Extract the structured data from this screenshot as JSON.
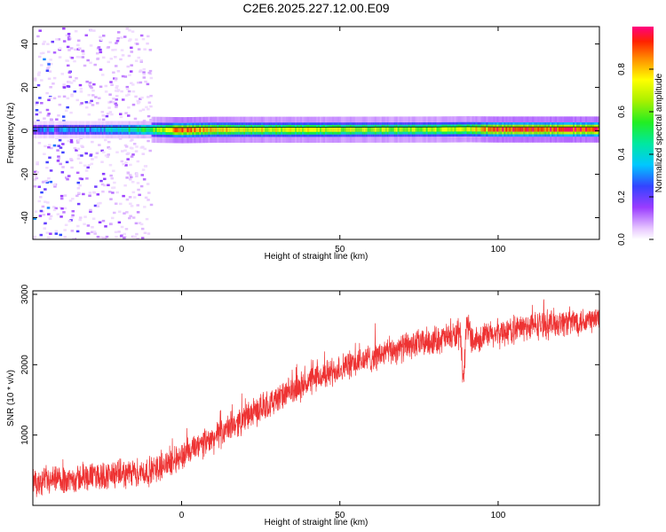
{
  "title": "C2E6.2025.227.12.00.E09",
  "chart_data": [
    {
      "type": "heatmap",
      "name": "spectrogram",
      "xlabel": "Height of straight line (km)",
      "ylabel": "Frequency (Hz)",
      "xlim": [
        -47,
        132
      ],
      "ylim": [
        -50,
        48
      ],
      "xticks": [
        0,
        50,
        100
      ],
      "yticks": [
        -40,
        -20,
        0,
        20,
        40
      ],
      "colorbar": {
        "label": "Normalized spectral amplitude",
        "range": [
          0,
          1
        ],
        "ticks": [
          0.0,
          0.2,
          0.4,
          0.6,
          0.8
        ],
        "tick_labels": [
          "0.0",
          "0.2",
          "0.4",
          "0.6",
          "0.8"
        ]
      },
      "center_line": {
        "x": [
          -47,
          -30,
          -10,
          0,
          10,
          40,
          80,
          90,
          100,
          132
        ],
        "freq": [
          0.5,
          0.5,
          0.5,
          0.3,
          0.5,
          0.5,
          0.6,
          0.7,
          0.6,
          0.6
        ],
        "amplitude": [
          0.25,
          0.3,
          0.55,
          0.9,
          0.75,
          0.7,
          0.65,
          0.7,
          0.9,
          0.95
        ]
      },
      "scatter_region": {
        "x": [
          -47,
          -10
        ],
        "freq": [
          -50,
          48
        ]
      }
    },
    {
      "type": "line",
      "name": "snr",
      "xlabel": "Height of straight line (km)",
      "ylabel": "SNR (10 * v/v)",
      "xlim": [
        -47,
        132
      ],
      "ylim": [
        0,
        3050
      ],
      "xticks": [
        0,
        50,
        100
      ],
      "yticks": [
        1000,
        2000,
        3000
      ],
      "color": "#ee3333",
      "trend": {
        "x": [
          -47,
          -30,
          -10,
          0,
          10,
          20,
          30,
          40,
          50,
          60,
          70,
          80,
          88,
          89,
          90,
          92,
          100,
          110,
          120,
          132
        ],
        "y": [
          300,
          400,
          480,
          700,
          950,
          1250,
          1500,
          1750,
          1950,
          2100,
          2250,
          2350,
          2420,
          1700,
          2600,
          2350,
          2450,
          2550,
          2600,
          2650
        ]
      },
      "noise_amplitude": 170
    }
  ]
}
